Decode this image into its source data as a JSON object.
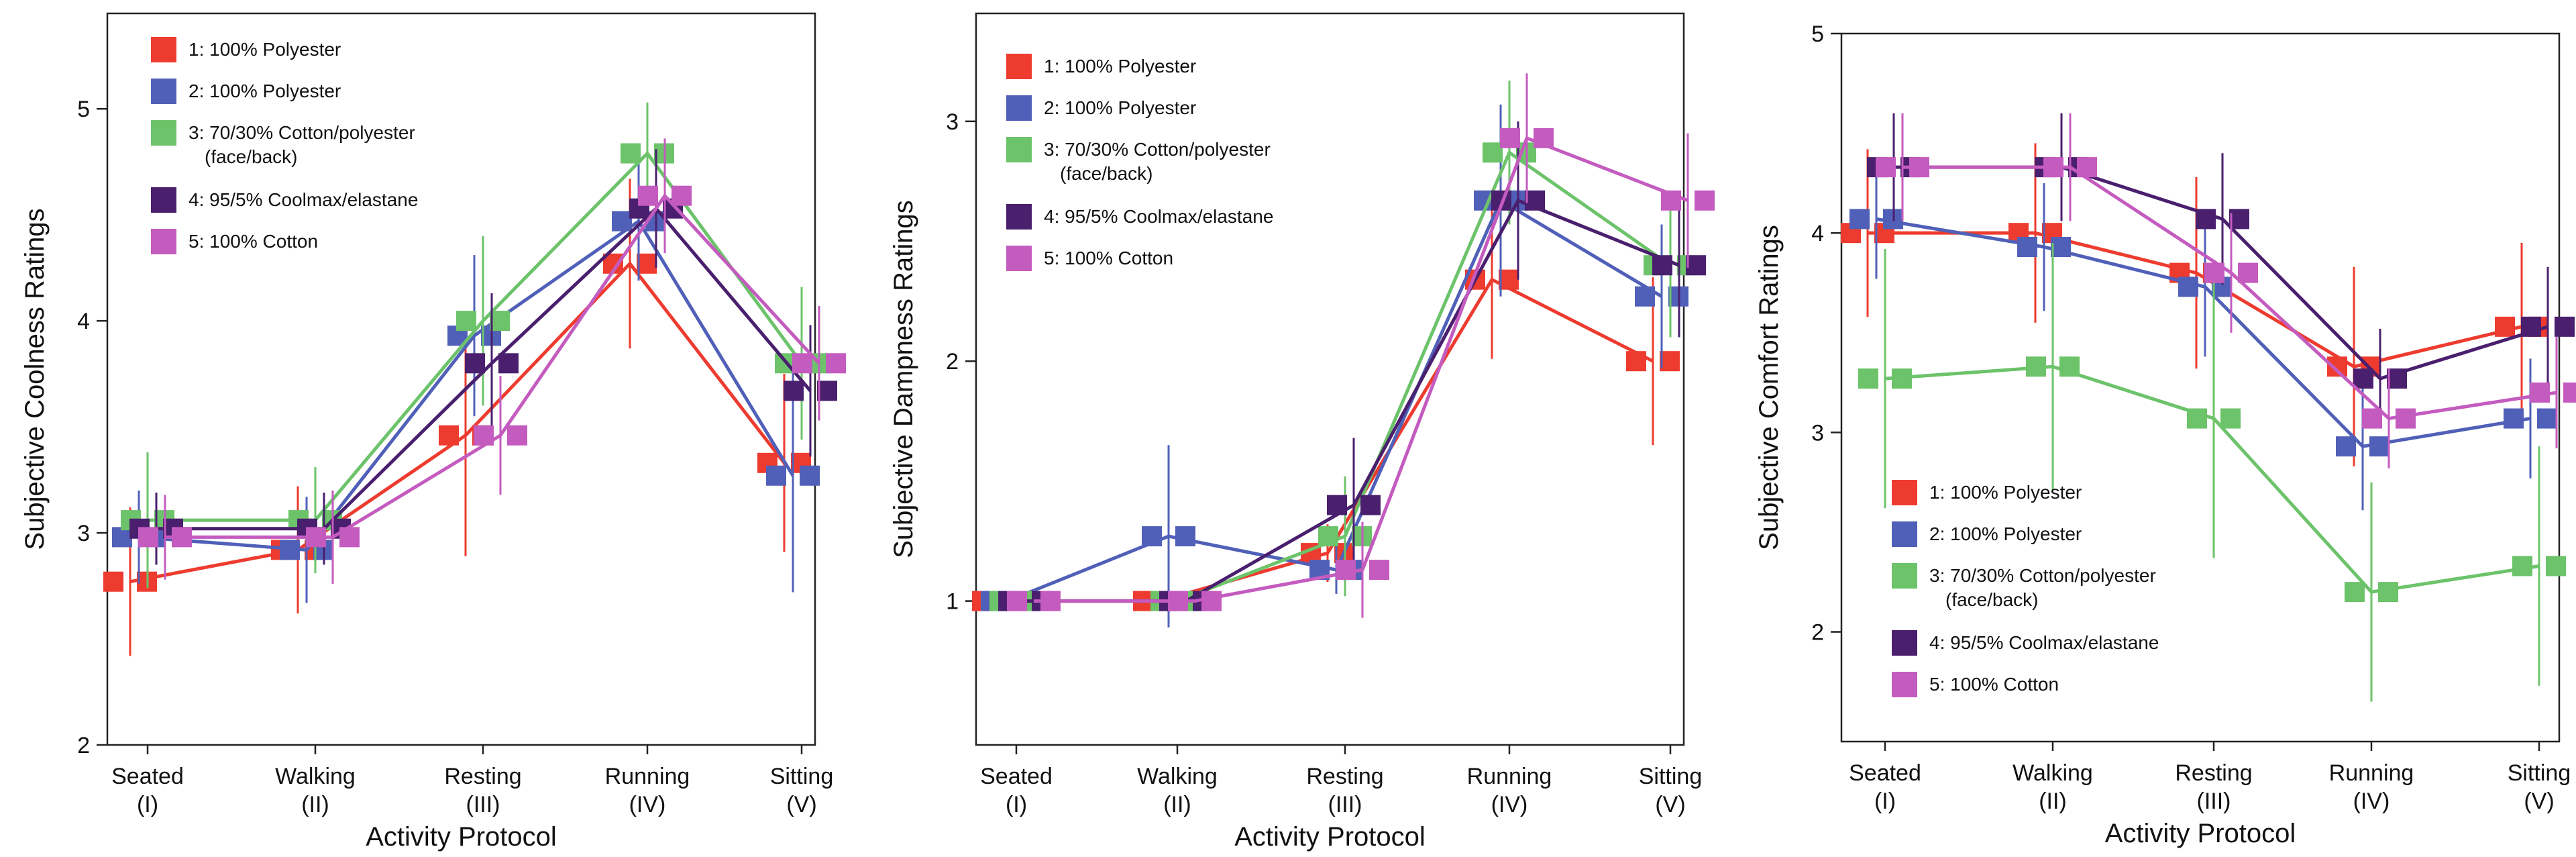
{
  "colors": {
    "s1": "#ee3b2f",
    "s2": "#5060b8",
    "s3": "#6cc36a",
    "s4": "#4a1f6e",
    "s5": "#c45bbf"
  },
  "chart_data": [
    {
      "type": "line",
      "xlabel": "Activity Protocol",
      "ylabel": "Subjective Coolness Ratings",
      "categories": [
        {
          "line1": "Seated",
          "line2": "(I)"
        },
        {
          "line1": "Walking",
          "line2": "(II)"
        },
        {
          "line1": "Resting",
          "line2": "(III)"
        },
        {
          "line1": "Running",
          "line2": "(IV)"
        },
        {
          "line1": "Sitting",
          "line2": "(V)"
        }
      ],
      "ylim": [
        2,
        5.45
      ],
      "yticks": [
        "2",
        "3",
        "4",
        "5"
      ],
      "legend_position": "top-left",
      "series": [
        {
          "name": "1: 100% Polyester",
          "values": [
            2.77,
            2.92,
            3.46,
            4.27,
            3.33
          ],
          "err": [
            0.35,
            0.3,
            0.57,
            0.4,
            0.42
          ]
        },
        {
          "name": "2: 100% Polyester",
          "values": [
            2.98,
            2.92,
            3.93,
            4.47,
            3.27
          ],
          "err": [
            0.22,
            0.25,
            0.38,
            0.28,
            0.55
          ]
        },
        {
          "name": "3: 70/30% Cotton/polyester",
          "name_sub": "(face/back)",
          "values": [
            3.06,
            3.06,
            4.0,
            4.79,
            3.8
          ],
          "err": [
            0.32,
            0.25,
            0.4,
            0.24,
            0.36
          ]
        },
        {
          "name": "4: 95/5% Coolmax/elastane",
          "values": [
            3.02,
            3.02,
            3.8,
            4.53,
            3.67
          ],
          "err": [
            0.17,
            0.17,
            0.33,
            0.28,
            0.31
          ]
        },
        {
          "name": "5: 100% Cotton",
          "values": [
            2.98,
            2.98,
            3.46,
            4.59,
            3.8
          ],
          "err": [
            0.2,
            0.22,
            0.28,
            0.27,
            0.27
          ]
        }
      ]
    },
    {
      "type": "line",
      "xlabel": "Activity Protocol",
      "ylabel": "Subjective Dampness Ratings",
      "categories": [
        {
          "line1": "Seated",
          "line2": "(I)"
        },
        {
          "line1": "Walking",
          "line2": "(II)"
        },
        {
          "line1": "Resting",
          "line2": "(III)"
        },
        {
          "line1": "Running",
          "line2": "(IV)"
        },
        {
          "line1": "Sitting",
          "line2": "(V)"
        }
      ],
      "ylim": [
        0.4,
        3.45
      ],
      "yticks": [
        "1",
        "2",
        "3"
      ],
      "legend_position": "top-left",
      "series": [
        {
          "name": "1: 100% Polyester",
          "values": [
            1.0,
            1.0,
            1.2,
            2.34,
            2.0
          ],
          "err": [
            0,
            0,
            0.12,
            0.33,
            0.35
          ]
        },
        {
          "name": "2: 100% Polyester",
          "values": [
            1.0,
            1.27,
            1.13,
            2.67,
            2.27
          ],
          "err": [
            0,
            0.38,
            0.1,
            0.4,
            0.3
          ]
        },
        {
          "name": "3: 70/30% Cotton/polyester",
          "name_sub": "(face/back)",
          "values": [
            1.0,
            1.0,
            1.27,
            2.87,
            2.4
          ],
          "err": [
            0,
            0,
            0.25,
            0.3,
            0.3
          ]
        },
        {
          "name": "4: 95/5% Coolmax/elastane",
          "values": [
            1.0,
            1.0,
            1.4,
            2.67,
            2.4
          ],
          "err": [
            0,
            0,
            0.28,
            0.33,
            0.3
          ]
        },
        {
          "name": "5: 100% Cotton",
          "values": [
            1.0,
            1.0,
            1.13,
            2.93,
            2.67
          ],
          "err": [
            0,
            0,
            0.2,
            0.27,
            0.28
          ]
        }
      ]
    },
    {
      "type": "line",
      "xlabel": "Activity Protocol",
      "ylabel": "Subjective Comfort Ratings",
      "categories": [
        {
          "line1": "Seated",
          "line2": "(I)"
        },
        {
          "line1": "Walking",
          "line2": "(II)"
        },
        {
          "line1": "Resting",
          "line2": "(III)"
        },
        {
          "line1": "Running",
          "line2": "(IV)"
        },
        {
          "line1": "Sitting",
          "line2": "(V)"
        }
      ],
      "ylim": [
        1.45,
        5.0
      ],
      "yticks": [
        "2",
        "3",
        "4",
        "5"
      ],
      "legend_position": "bottom-left",
      "series": [
        {
          "name": "1: 100% Polyester",
          "values": [
            4.0,
            4.0,
            3.8,
            3.33,
            3.53
          ],
          "err": [
            0.42,
            0.45,
            0.48,
            0.5,
            0.42
          ]
        },
        {
          "name": "2: 100% Polyester",
          "values": [
            4.07,
            3.93,
            3.73,
            2.93,
            3.07
          ],
          "err": [
            0.3,
            0.32,
            0.35,
            0.32,
            0.3
          ]
        },
        {
          "name": "3: 70/30% Cotton/polyester",
          "name_sub": "(face/back)",
          "values": [
            3.27,
            3.33,
            3.07,
            2.2,
            2.33
          ],
          "err": [
            0.65,
            0.62,
            0.7,
            0.55,
            0.6
          ]
        },
        {
          "name": "4: 95/5% Coolmax/elastane",
          "values": [
            4.33,
            4.33,
            4.07,
            3.27,
            3.53
          ],
          "err": [
            0.27,
            0.27,
            0.33,
            0.25,
            0.3
          ]
        },
        {
          "name": "5: 100% Cotton",
          "values": [
            4.33,
            4.33,
            3.8,
            3.07,
            3.2
          ],
          "err": [
            0.27,
            0.27,
            0.3,
            0.25,
            0.28
          ]
        }
      ]
    }
  ]
}
